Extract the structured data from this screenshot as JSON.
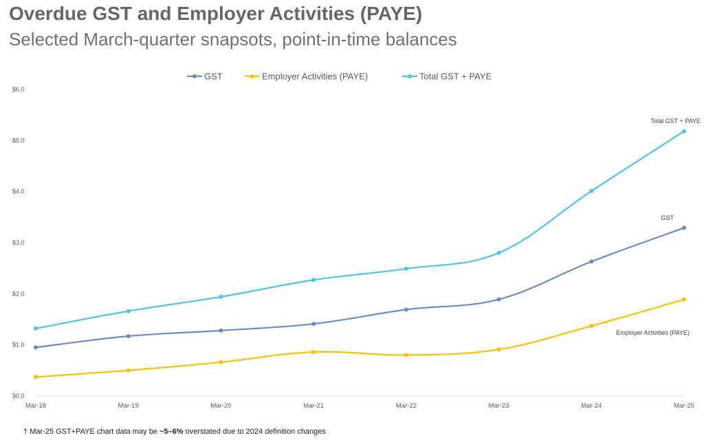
{
  "chart_data": {
    "type": "line",
    "title": "Overdue GST and Employer Activities (PAYE)",
    "subtitle": "Selected March-quarter snapsots, point-in-time balances",
    "categories": [
      "Mar-18",
      "Mar-19",
      "Mar-20",
      "Mar-21",
      "Mar-22",
      "Mar-23",
      "Mar-24",
      "Mar-25"
    ],
    "ylim": [
      0,
      6
    ],
    "yticks": [
      "$0.0",
      "$1.0",
      "$2.0",
      "$3.0",
      "$4.0",
      "$5.0",
      "$6.0"
    ],
    "grid": false,
    "legend_position": "top-center",
    "series": [
      {
        "name": "GST",
        "color": "#6A8BC6",
        "values": [
          0.95,
          1.17,
          1.28,
          1.41,
          1.69,
          1.89,
          2.63,
          3.29
        ]
      },
      {
        "name": "Employer Activities (PAYE)",
        "color": "#FFC000",
        "values": [
          0.37,
          0.5,
          0.66,
          0.86,
          0.8,
          0.91,
          1.37,
          1.89
        ]
      },
      {
        "name": "Total GST + PAYE",
        "color": "#4DC3EC",
        "values": [
          1.32,
          1.66,
          1.94,
          2.27,
          2.49,
          2.8,
          4.01,
          5.18
        ]
      }
    ],
    "end_labels": [
      "GST",
      "Employer Activities (PAYE)",
      "Total GST + PAYE"
    ]
  },
  "footnote": {
    "prefix": "† Mar-25 GST+PAYE chart data  may be ",
    "bold": "~5–6%",
    "suffix": " overstated due to 2024 definition changes"
  }
}
